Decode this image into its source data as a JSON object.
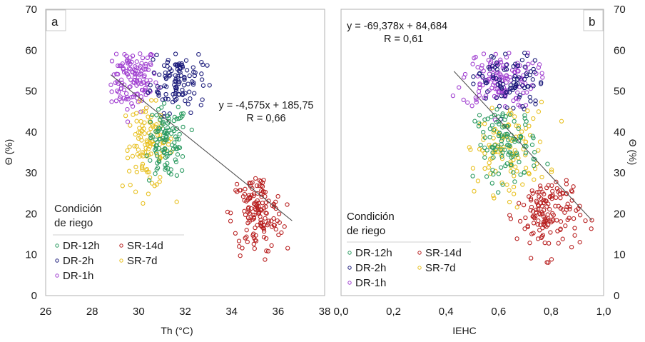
{
  "chart_data": [
    {
      "type": "scatter",
      "panel_label": "a",
      "title": "",
      "xlabel": "Th (°C)",
      "ylabel": "Θ (%)",
      "xlim": [
        26,
        38
      ],
      "ylim": [
        0,
        70
      ],
      "xticks": [
        "26",
        "28",
        "30",
        "32",
        "34",
        "36",
        "38"
      ],
      "yticks": [
        "0",
        "10",
        "20",
        "30",
        "40",
        "50",
        "60",
        "70"
      ],
      "y_axis_side": "left",
      "grid": false,
      "legend": {
        "title": "Condición de riego",
        "title_lines": [
          "Condición",
          "de riego"
        ],
        "placement": "bottom-left",
        "entries": [
          "DR-12h",
          "SR-14d",
          "DR-2h",
          "SR-7d",
          "DR-1h"
        ]
      },
      "trendline": {
        "equation": "y = -4,575x + 185,75",
        "r_label": "R = 0,66",
        "slope": -4.575,
        "intercept": 185.75,
        "x_range": [
          28.8,
          36.6
        ],
        "annotation_placement": "upper-right"
      },
      "series": [
        {
          "name": "DR-1h",
          "color": "#a040d0",
          "clusters": [
            {
              "cx": 29.7,
              "cy": 53,
              "sx": 0.55,
              "sy": 4,
              "n": 130,
              "xmin": 28.8,
              "xmax": 31.3,
              "ymin": 41,
              "ymax": 59.5
            }
          ]
        },
        {
          "name": "DR-2h",
          "color": "#1a1a7a",
          "clusters": [
            {
              "cx": 31.7,
              "cy": 53,
              "sx": 0.6,
              "sy": 4,
              "n": 110,
              "xmin": 30.3,
              "xmax": 33.2,
              "ymin": 42,
              "ymax": 59.5
            }
          ]
        },
        {
          "name": "SR-7d",
          "color": "#e8c020",
          "clusters": [
            {
              "cx": 30.4,
              "cy": 37,
              "sx": 0.55,
              "sy": 5.5,
              "n": 110,
              "xmin": 29.3,
              "xmax": 32.5,
              "ymin": 20,
              "ymax": 49
            }
          ]
        },
        {
          "name": "DR-12h",
          "color": "#2a9a60",
          "clusters": [
            {
              "cx": 31.2,
              "cy": 37.5,
              "sx": 0.45,
              "sy": 4.5,
              "n": 110,
              "xmin": 30.3,
              "xmax": 32.5,
              "ymin": 23,
              "ymax": 47
            }
          ]
        },
        {
          "name": "SR-14d",
          "color": "#b82020",
          "clusters": [
            {
              "cx": 35.1,
              "cy": 20,
              "sx": 0.55,
              "sy": 5,
              "n": 150,
              "xmin": 33.8,
              "xmax": 36.6,
              "ymin": 8,
              "ymax": 29.5
            }
          ]
        }
      ]
    },
    {
      "type": "scatter",
      "panel_label": "b",
      "title": "",
      "xlabel": "IEHC",
      "ylabel": "Θ (%)",
      "xlim": [
        0.0,
        1.0
      ],
      "ylim": [
        0,
        70
      ],
      "xticks": [
        "0,0",
        "0,2",
        "0,4",
        "0,6",
        "0,8",
        "1,0"
      ],
      "yticks": [
        "0",
        "10",
        "20",
        "30",
        "40",
        "50",
        "60",
        "70"
      ],
      "y_axis_side": "right",
      "grid": false,
      "legend": {
        "title": "Condición de riego",
        "title_lines": [
          "Condición",
          "de riego"
        ],
        "placement": "bottom-left",
        "entries": [
          "DR-12h",
          "SR-14d",
          "DR-2h",
          "SR-7d",
          "DR-1h"
        ]
      },
      "trendline": {
        "equation": "y = -69,378x + 84,684",
        "r_label": "R = 0,61",
        "slope": -69.378,
        "intercept": 84.684,
        "x_range": [
          0.43,
          0.955
        ],
        "annotation_placement": "upper-left"
      },
      "series": [
        {
          "name": "DR-1h",
          "color": "#a040d0",
          "clusters": [
            {
              "cx": 0.6,
              "cy": 53,
              "sx": 0.07,
              "sy": 3.5,
              "n": 140,
              "xmin": 0.42,
              "xmax": 0.78,
              "ymin": 41,
              "ymax": 59.5
            }
          ]
        },
        {
          "name": "DR-2h",
          "color": "#1a1a7a",
          "clusters": [
            {
              "cx": 0.64,
              "cy": 52,
              "sx": 0.07,
              "sy": 4,
              "n": 90,
              "xmin": 0.5,
              "xmax": 0.77,
              "ymin": 40,
              "ymax": 59.5
            }
          ]
        },
        {
          "name": "SR-7d",
          "color": "#e8c020",
          "clusters": [
            {
              "cx": 0.63,
              "cy": 36,
              "sx": 0.08,
              "sy": 5.5,
              "n": 110,
              "xmin": 0.48,
              "xmax": 0.85,
              "ymin": 20,
              "ymax": 48
            }
          ]
        },
        {
          "name": "DR-12h",
          "color": "#2a9a60",
          "clusters": [
            {
              "cx": 0.63,
              "cy": 37,
              "sx": 0.06,
              "sy": 4.5,
              "n": 110,
              "xmin": 0.5,
              "xmax": 0.8,
              "ymin": 25,
              "ymax": 46
            }
          ]
        },
        {
          "name": "SR-14d",
          "color": "#b82020",
          "clusters": [
            {
              "cx": 0.79,
              "cy": 20,
              "sx": 0.06,
              "sy": 5,
              "n": 150,
              "xmin": 0.64,
              "xmax": 0.96,
              "ymin": 8,
              "ymax": 30
            }
          ]
        }
      ]
    }
  ]
}
